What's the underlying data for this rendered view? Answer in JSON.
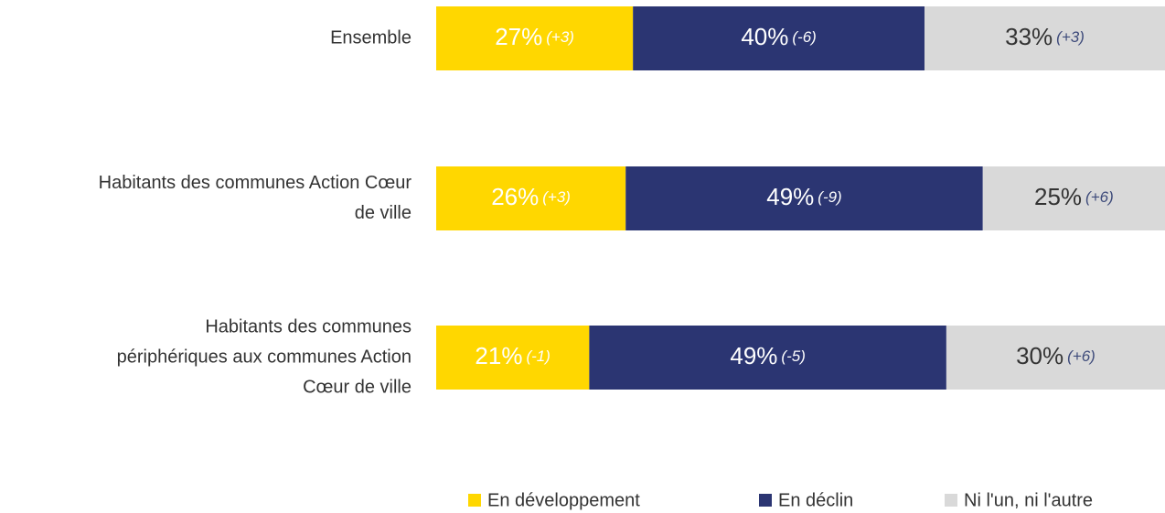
{
  "chart_data": {
    "type": "stacked-bar-horizontal",
    "categories": [
      "Ensemble",
      "Habitants des communes Action Cœur\nde ville",
      "Habitants des communes\npériphériques aux communes Action\nCœur de ville"
    ],
    "xlim": [
      0,
      100
    ],
    "series": [
      {
        "name": "En développement",
        "color": "#FFD700",
        "values": [
          27,
          26,
          21
        ],
        "value_labels": [
          "27%",
          "26%",
          "21%"
        ],
        "changes": [
          3,
          3,
          -1
        ],
        "change_labels": [
          "(+3)",
          "(+3)",
          "(-1)"
        ]
      },
      {
        "name": "En déclin",
        "color": "#2B3572",
        "values": [
          40,
          49,
          49
        ],
        "value_labels": [
          "40%",
          "49%",
          "49%"
        ],
        "changes": [
          -6,
          -9,
          -5
        ],
        "change_labels": [
          "(-6)",
          "(-9)",
          "(-5)"
        ]
      },
      {
        "name": "Ni l'un, ni l'autre",
        "color": "#D9D9D9",
        "values": [
          33,
          25,
          30
        ],
        "value_labels": [
          "33%",
          "25%",
          "30%"
        ],
        "changes": [
          3,
          6,
          6
        ],
        "change_labels": [
          "(+3)",
          "(+6)",
          "(+6)"
        ]
      }
    ]
  }
}
